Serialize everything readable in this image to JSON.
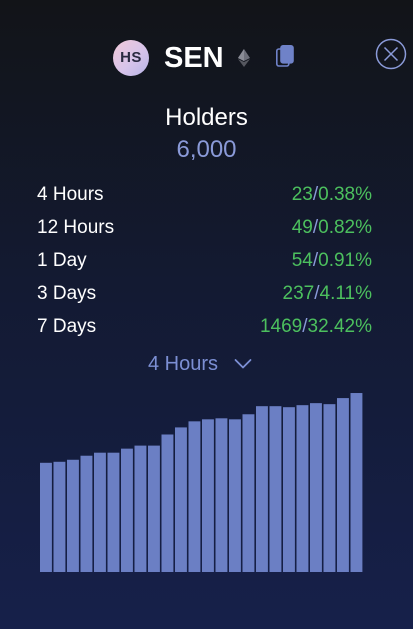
{
  "header": {
    "avatar_initials": "HS",
    "token_symbol": "SEN",
    "chain_icon": "ethereum-icon",
    "copy_icon": "copy-icon",
    "close_icon": "close-icon"
  },
  "holders": {
    "label": "Holders",
    "value": "6,000"
  },
  "stats": [
    {
      "period": "4 Hours",
      "count": "23",
      "percent": "0.38%"
    },
    {
      "period": "12 Hours",
      "count": "49",
      "percent": "0.82%"
    },
    {
      "period": "1 Day",
      "count": "54",
      "percent": "0.91%"
    },
    {
      "period": "3 Days",
      "count": "237",
      "percent": "4.11%"
    },
    {
      "period": "7 Days",
      "count": "1469",
      "percent": "32.42%"
    }
  ],
  "dropdown": {
    "selected": "4 Hours"
  },
  "colors": {
    "accent": "#7c8fd4",
    "positive": "#4cc05e",
    "bar": "#6b7fc4"
  },
  "chart_data": {
    "type": "bar",
    "values": [
      108,
      109,
      111,
      115,
      118,
      118,
      122,
      125,
      125,
      136,
      143,
      149,
      151,
      152,
      151,
      156,
      164,
      164,
      163,
      165,
      167,
      166,
      172,
      177
    ],
    "ylim": [
      0,
      180
    ]
  }
}
